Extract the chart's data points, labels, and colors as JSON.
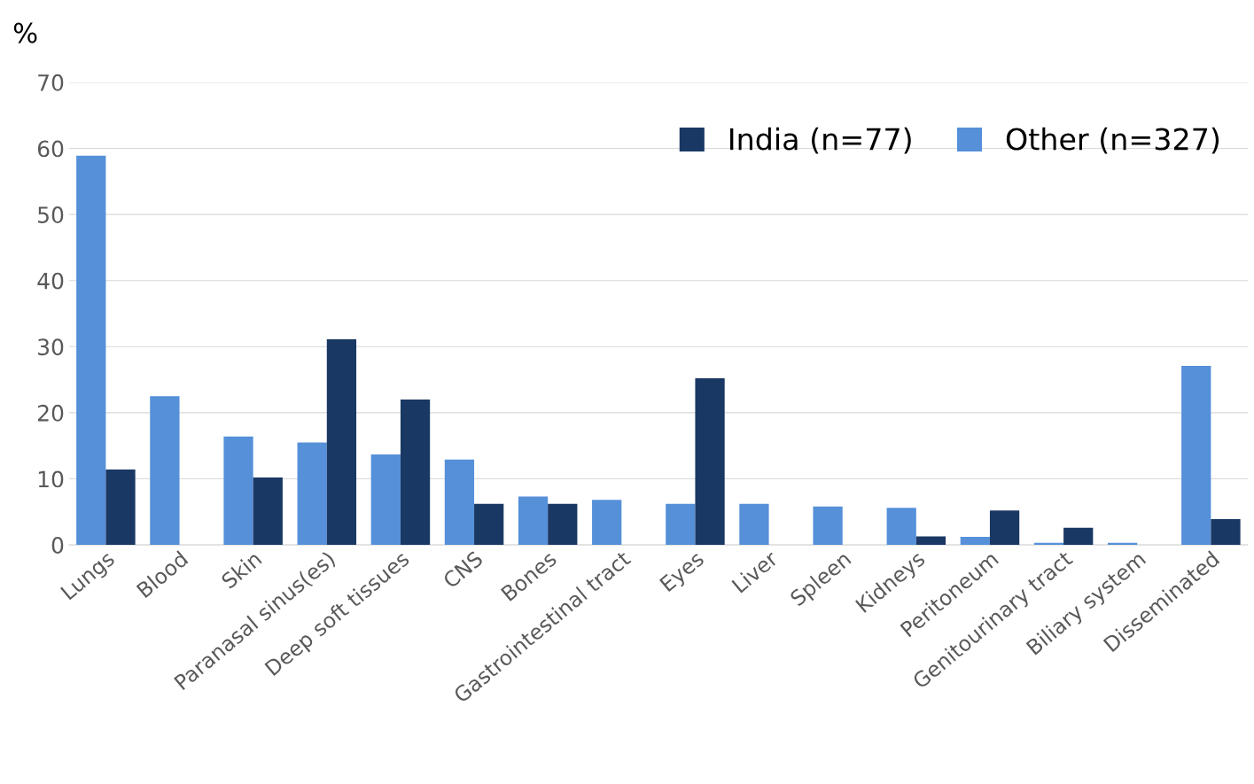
{
  "chart_data": {
    "type": "bar",
    "ylabel": "%",
    "categories": [
      "Lungs",
      "Blood",
      "Skin",
      "Paranasal sinus(es)",
      "Deep soft tissues",
      "CNS",
      "Bones",
      "Gastrointestinal tract",
      "Eyes",
      "Liver",
      "Spleen",
      "Kidneys",
      "Peritoneum",
      "Genitourinary tract",
      "Biliary system",
      "Disseminated"
    ],
    "series": [
      {
        "name": "Other (n=327)",
        "color": "#5590d9",
        "values": [
          58.9,
          22.5,
          16.4,
          15.5,
          13.7,
          12.9,
          7.3,
          6.8,
          6.2,
          6.2,
          5.8,
          5.6,
          1.2,
          0.3,
          0.3,
          27.1
        ]
      },
      {
        "name": "India (n=77)",
        "color": "#1a3864",
        "values": [
          11.4,
          0,
          10.2,
          31.1,
          22.0,
          6.2,
          6.2,
          0,
          25.2,
          0,
          0,
          1.3,
          5.2,
          2.6,
          0,
          3.9
        ]
      }
    ],
    "ylim": [
      0,
      70
    ],
    "yticks": [
      0,
      10,
      20,
      30,
      40,
      50,
      60,
      70
    ],
    "grid": "y",
    "legend": "top right"
  }
}
